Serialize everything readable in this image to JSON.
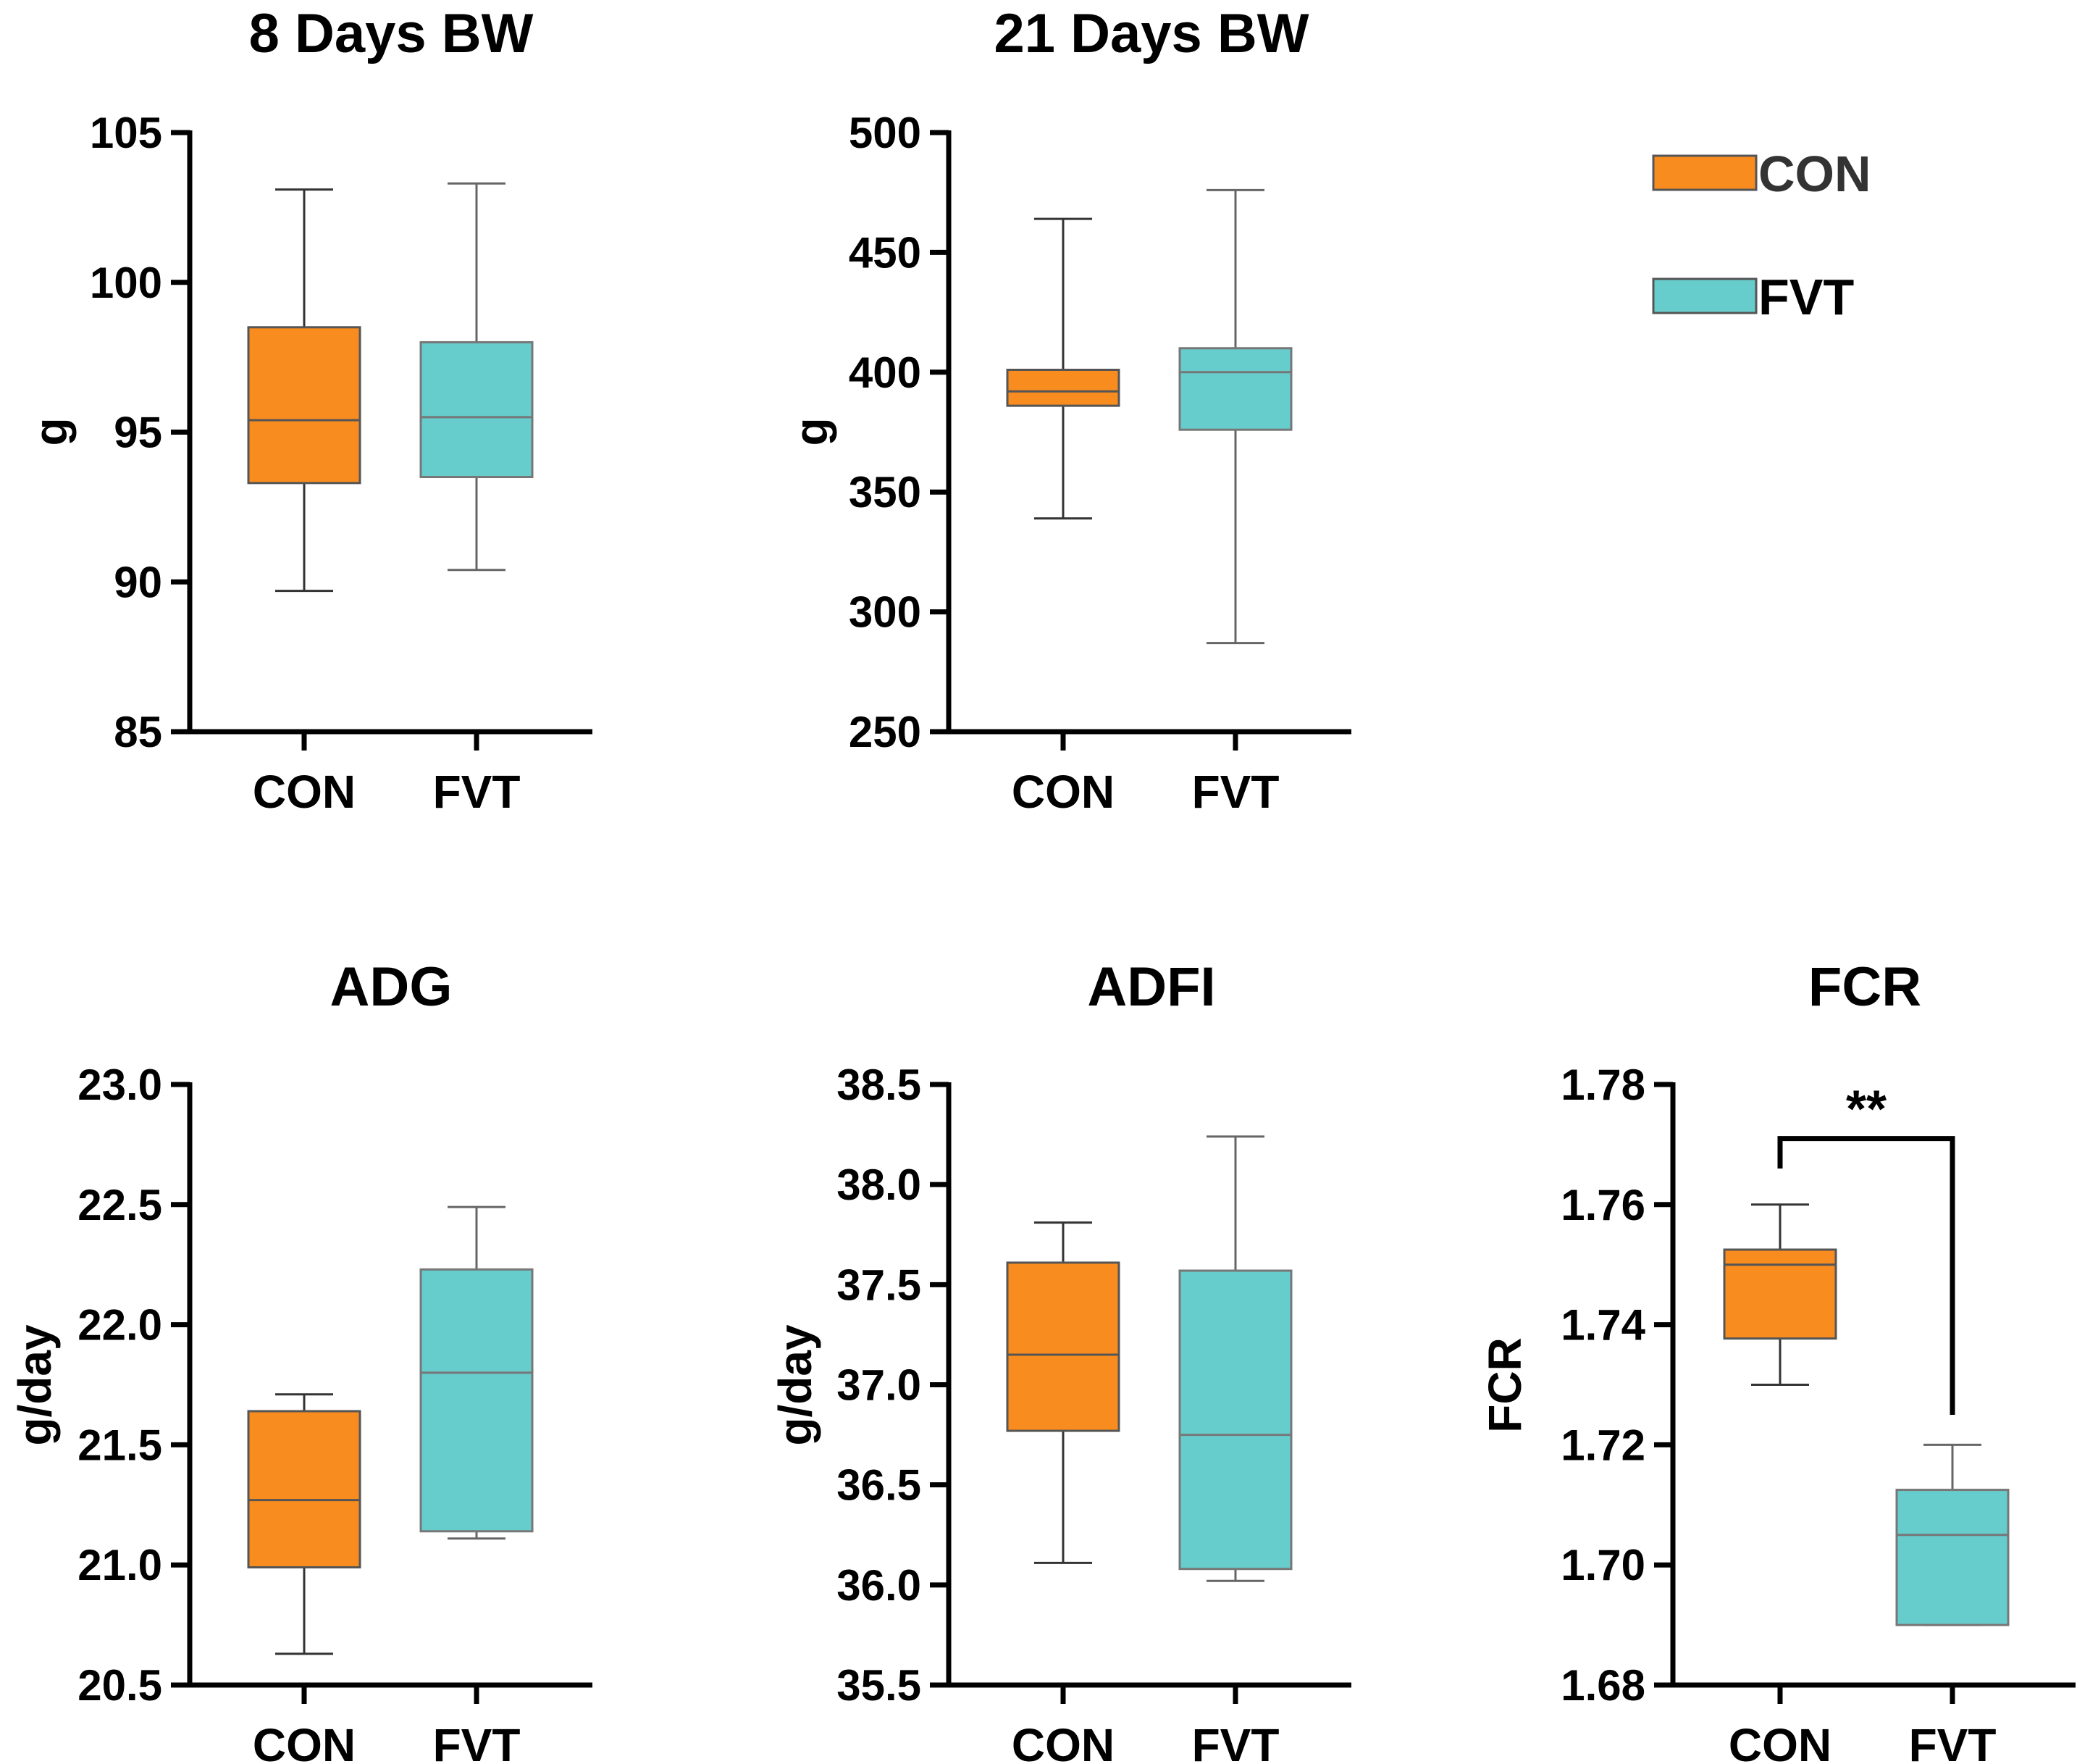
{
  "colors": {
    "CON": "#F98C1F",
    "FVT": "#66CDCC",
    "axis": "#000000",
    "box_stroke": "#555555"
  },
  "legend": {
    "items": [
      {
        "group": "CON",
        "label": "CON"
      },
      {
        "group": "FVT",
        "label": "FVT"
      }
    ]
  },
  "chart_data": [
    {
      "type": "box",
      "title": "8 Days BW",
      "ylabel": "g",
      "ylim": [
        85,
        105
      ],
      "yticks": [
        85,
        90,
        95,
        100,
        105
      ],
      "tick_labels": [
        "85",
        "90",
        "95",
        "100",
        "105"
      ],
      "categories": [
        "CON",
        "FVT"
      ],
      "boxes": [
        {
          "group": "CON",
          "min": 89.7,
          "q1": 93.3,
          "median": 95.4,
          "q3": 98.5,
          "max": 103.1
        },
        {
          "group": "FVT",
          "min": 90.4,
          "q1": 93.5,
          "median": 95.5,
          "q3": 98.0,
          "max": 103.3
        }
      ]
    },
    {
      "type": "box",
      "title": "21 Days BW",
      "ylabel": "g",
      "ylim": [
        250,
        500
      ],
      "yticks": [
        250,
        300,
        350,
        400,
        450,
        500
      ],
      "tick_labels": [
        "250",
        "300",
        "350",
        "400",
        "450",
        "500"
      ],
      "categories": [
        "CON",
        "FVT"
      ],
      "boxes": [
        {
          "group": "CON",
          "min": 339,
          "q1": 386,
          "median": 392,
          "q3": 401,
          "max": 464
        },
        {
          "group": "FVT",
          "min": 287,
          "q1": 376,
          "median": 400,
          "q3": 410,
          "max": 476
        }
      ]
    },
    {
      "type": "box",
      "title": "ADG",
      "ylabel": "g/day",
      "ylim": [
        20.5,
        23.0
      ],
      "yticks": [
        20.5,
        21.0,
        21.5,
        22.0,
        22.5,
        23.0
      ],
      "tick_labels": [
        "20.5",
        "21.0",
        "21.5",
        "22.0",
        "22.5",
        "23.0"
      ],
      "categories": [
        "CON",
        "FVT"
      ],
      "boxes": [
        {
          "group": "CON",
          "min": 20.63,
          "q1": 20.99,
          "median": 21.27,
          "q3": 21.64,
          "max": 21.71
        },
        {
          "group": "FVT",
          "min": 21.11,
          "q1": 21.14,
          "median": 21.8,
          "q3": 22.23,
          "max": 22.49
        }
      ]
    },
    {
      "type": "box",
      "title": "ADFI",
      "ylabel": "g/day",
      "ylim": [
        35.5,
        38.5
      ],
      "yticks": [
        35.5,
        36.0,
        36.5,
        37.0,
        37.5,
        38.0,
        38.5
      ],
      "tick_labels": [
        "35.5",
        "36.0",
        "36.5",
        "37.0",
        "37.5",
        "38.0",
        "38.5"
      ],
      "categories": [
        "CON",
        "FVT"
      ],
      "boxes": [
        {
          "group": "CON",
          "min": 36.11,
          "q1": 36.77,
          "median": 37.15,
          "q3": 37.61,
          "max": 37.81
        },
        {
          "group": "FVT",
          "min": 36.02,
          "q1": 36.08,
          "median": 36.75,
          "q3": 37.57,
          "max": 38.24
        }
      ]
    },
    {
      "type": "box",
      "title": "FCR",
      "ylabel": "FCR",
      "ylim": [
        1.68,
        1.78
      ],
      "yticks": [
        1.68,
        1.7,
        1.72,
        1.74,
        1.76,
        1.78
      ],
      "tick_labels": [
        "1.68",
        "1.70",
        "1.72",
        "1.74",
        "1.76",
        "1.78"
      ],
      "categories": [
        "CON",
        "FVT"
      ],
      "boxes": [
        {
          "group": "CON",
          "min": 1.73,
          "q1": 1.7377,
          "median": 1.75,
          "q3": 1.7525,
          "max": 1.76
        },
        {
          "group": "FVT",
          "min": 1.69,
          "q1": 1.69,
          "median": 1.705,
          "q3": 1.7125,
          "max": 1.72
        }
      ],
      "significance": {
        "label": "**",
        "bracket_y": 1.771,
        "left_end": 1.766,
        "right_end": 1.725
      }
    }
  ]
}
